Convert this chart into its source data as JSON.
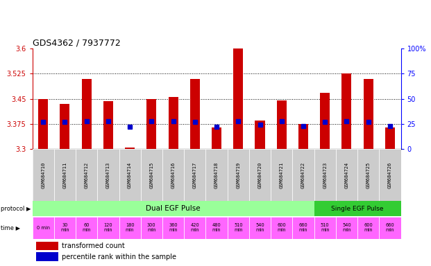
{
  "title": "GDS4362 / 7937772",
  "samples": [
    "GSM684710",
    "GSM684711",
    "GSM684712",
    "GSM684713",
    "GSM684714",
    "GSM684715",
    "GSM684716",
    "GSM684717",
    "GSM684718",
    "GSM684719",
    "GSM684720",
    "GSM684721",
    "GSM684722",
    "GSM684723",
    "GSM684724",
    "GSM684725",
    "GSM684726"
  ],
  "bar_tops": [
    3.45,
    3.435,
    3.51,
    3.443,
    3.305,
    3.45,
    3.455,
    3.51,
    3.365,
    3.6,
    3.385,
    3.445,
    3.375,
    3.468,
    3.525,
    3.51,
    3.365
  ],
  "bar_base": 3.3,
  "percentile_values": [
    27,
    27,
    28,
    28,
    22,
    28,
    28,
    27,
    22,
    28,
    24,
    28,
    23,
    27,
    28,
    27,
    23
  ],
  "ymin": 3.3,
  "ymax": 3.6,
  "yticks": [
    3.3,
    3.375,
    3.45,
    3.525,
    3.6
  ],
  "right_yticks": [
    0,
    25,
    50,
    75,
    100
  ],
  "bar_color": "#cc0000",
  "percentile_color": "#0000cc",
  "grid_dotted_at": [
    3.375,
    3.45,
    3.525
  ],
  "protocol_dual_label": "Dual EGF Pulse",
  "protocol_single_label": "Single EGF Pulse",
  "protocol_dual_color": "#99ff99",
  "protocol_single_color": "#33cc33",
  "protocol_dual_count": 13,
  "time_bg_color": "#ff66ff",
  "time_labels": [
    "0 min",
    "30\nmin",
    "60\nmin",
    "120\nmin",
    "180\nmin",
    "300\nmin",
    "360\nmin",
    "420\nmin",
    "480\nmin",
    "510\nmin",
    "540\nmin",
    "600\nmin",
    "660\nmin",
    "510\nmin",
    "540\nmin",
    "600\nmin",
    "660\nmin"
  ],
  "sample_bg_color": "#cccccc",
  "legend_red": "transformed count",
  "legend_blue": "percentile rank within the sample",
  "left_label_protocol": "protocol",
  "left_label_time": "time"
}
